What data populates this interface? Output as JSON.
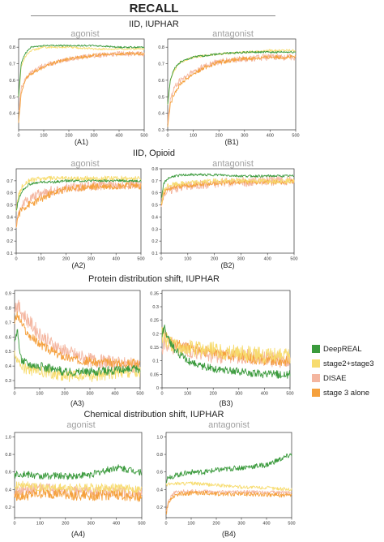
{
  "header": {
    "title": "RECALL"
  },
  "sections": [
    {
      "title": "IID, IUPHAR",
      "sub_left": "agonist",
      "sub_right": "antagonist"
    },
    {
      "title": "IID, Opioid",
      "sub_left": "agonist",
      "sub_right": "antagonist"
    },
    {
      "title": "Protein distribution shift, IUPHAR",
      "sub_left": "",
      "sub_right": ""
    },
    {
      "title": "Chemical distribution shift, IUPHAR",
      "sub_left": "agonist",
      "sub_right": "antagonist"
    }
  ],
  "legend": [
    {
      "name": "DeepREAL",
      "color": "#3a9a3c"
    },
    {
      "name": "stage2+stage3",
      "color": "#f7dc6f"
    },
    {
      "name": "DISAE",
      "color": "#f4b6a0"
    },
    {
      "name": "stage 3 alone",
      "color": "#f5a03c"
    }
  ],
  "chart_data": [
    {
      "id": "A1",
      "type": "line",
      "label": "(A1)",
      "xlim": [
        0,
        500
      ],
      "ylim": [
        0.3,
        0.85
      ],
      "xticks": [
        0,
        100,
        200,
        300,
        400,
        500
      ],
      "yticks": [
        0.4,
        0.5,
        0.6,
        0.7,
        0.8
      ],
      "x": [
        0,
        10,
        25,
        50,
        100,
        150,
        200,
        300,
        400,
        500
      ],
      "series": [
        {
          "name": "DeepREAL",
          "values": [
            0.5,
            0.7,
            0.76,
            0.8,
            0.81,
            0.81,
            0.81,
            0.81,
            0.8,
            0.8
          ],
          "noise": 0.005
        },
        {
          "name": "stage2+stage3",
          "values": [
            0.5,
            0.68,
            0.74,
            0.78,
            0.8,
            0.8,
            0.8,
            0.79,
            0.79,
            0.79
          ],
          "noise": 0.006
        },
        {
          "name": "DISAE",
          "values": [
            0.4,
            0.55,
            0.6,
            0.65,
            0.69,
            0.71,
            0.73,
            0.75,
            0.76,
            0.76
          ],
          "noise": 0.015
        },
        {
          "name": "stage 3 alone",
          "values": [
            0.35,
            0.52,
            0.6,
            0.64,
            0.68,
            0.71,
            0.73,
            0.75,
            0.76,
            0.76
          ],
          "noise": 0.01
        }
      ]
    },
    {
      "id": "B1",
      "type": "line",
      "label": "(B1)",
      "xlim": [
        0,
        500
      ],
      "ylim": [
        0.3,
        0.85
      ],
      "xticks": [
        0,
        100,
        200,
        300,
        400,
        500
      ],
      "yticks": [
        0.3,
        0.4,
        0.5,
        0.6,
        0.7,
        0.8
      ],
      "x": [
        0,
        10,
        25,
        50,
        100,
        150,
        200,
        300,
        400,
        500
      ],
      "series": [
        {
          "name": "DeepREAL",
          "values": [
            0.45,
            0.6,
            0.67,
            0.71,
            0.74,
            0.75,
            0.76,
            0.77,
            0.77,
            0.77
          ],
          "noise": 0.006
        },
        {
          "name": "stage2+stage3",
          "values": [
            0.45,
            0.6,
            0.66,
            0.71,
            0.74,
            0.75,
            0.76,
            0.77,
            0.78,
            0.78
          ],
          "noise": 0.007
        },
        {
          "name": "DISAE",
          "values": [
            0.35,
            0.48,
            0.55,
            0.6,
            0.65,
            0.69,
            0.71,
            0.73,
            0.74,
            0.74
          ],
          "noise": 0.02
        },
        {
          "name": "stage 3 alone",
          "values": [
            0.32,
            0.45,
            0.52,
            0.58,
            0.64,
            0.68,
            0.71,
            0.73,
            0.74,
            0.74
          ],
          "noise": 0.012
        }
      ]
    },
    {
      "id": "A2",
      "type": "line",
      "label": "(A2)",
      "xlim": [
        0,
        500
      ],
      "ylim": [
        0.1,
        0.8
      ],
      "xticks": [
        0,
        100,
        200,
        300,
        400,
        500
      ],
      "yticks": [
        0.1,
        0.2,
        0.3,
        0.4,
        0.5,
        0.6,
        0.7
      ],
      "x": [
        0,
        10,
        25,
        50,
        100,
        150,
        200,
        300,
        400,
        500
      ],
      "series": [
        {
          "name": "DeepREAL",
          "values": [
            0.45,
            0.55,
            0.62,
            0.67,
            0.69,
            0.69,
            0.7,
            0.7,
            0.7,
            0.7
          ],
          "noise": 0.01
        },
        {
          "name": "stage2+stage3",
          "values": [
            0.45,
            0.58,
            0.66,
            0.7,
            0.72,
            0.72,
            0.72,
            0.72,
            0.72,
            0.72
          ],
          "noise": 0.02
        },
        {
          "name": "DISAE",
          "values": [
            0.35,
            0.45,
            0.5,
            0.55,
            0.6,
            0.62,
            0.64,
            0.66,
            0.67,
            0.67
          ],
          "noise": 0.04
        },
        {
          "name": "stage 3 alone",
          "values": [
            0.33,
            0.42,
            0.47,
            0.5,
            0.55,
            0.6,
            0.63,
            0.65,
            0.66,
            0.66
          ],
          "noise": 0.03
        }
      ]
    },
    {
      "id": "B2",
      "type": "line",
      "label": "(B2)",
      "xlim": [
        0,
        500
      ],
      "ylim": [
        0.1,
        0.8
      ],
      "xticks": [
        0,
        100,
        200,
        300,
        400,
        500
      ],
      "yticks": [
        0.1,
        0.2,
        0.3,
        0.4,
        0.5,
        0.6,
        0.7,
        0.8
      ],
      "x": [
        0,
        10,
        25,
        50,
        100,
        150,
        200,
        300,
        400,
        500
      ],
      "series": [
        {
          "name": "DeepREAL",
          "values": [
            0.55,
            0.68,
            0.72,
            0.74,
            0.75,
            0.75,
            0.75,
            0.74,
            0.74,
            0.74
          ],
          "noise": 0.01
        },
        {
          "name": "stage2+stage3",
          "values": [
            0.5,
            0.62,
            0.66,
            0.67,
            0.68,
            0.69,
            0.7,
            0.7,
            0.7,
            0.7
          ],
          "noise": 0.02
        },
        {
          "name": "DISAE",
          "values": [
            0.5,
            0.6,
            0.62,
            0.64,
            0.66,
            0.67,
            0.68,
            0.69,
            0.7,
            0.7
          ],
          "noise": 0.04
        },
        {
          "name": "stage 3 alone",
          "values": [
            0.5,
            0.6,
            0.63,
            0.65,
            0.66,
            0.67,
            0.68,
            0.69,
            0.69,
            0.69
          ],
          "noise": 0.02
        }
      ]
    },
    {
      "id": "A3",
      "type": "line",
      "label": "(A3)",
      "xlim": [
        0,
        500
      ],
      "ylim": [
        0.25,
        0.92
      ],
      "xticks": [
        0,
        100,
        200,
        300,
        400,
        500
      ],
      "yticks": [
        0.3,
        0.4,
        0.5,
        0.6,
        0.7,
        0.8,
        0.9
      ],
      "x": [
        0,
        10,
        25,
        50,
        100,
        150,
        200,
        300,
        400,
        500
      ],
      "series": [
        {
          "name": "DeepREAL",
          "values": [
            0.55,
            0.65,
            0.45,
            0.42,
            0.4,
            0.38,
            0.36,
            0.36,
            0.37,
            0.38
          ],
          "noise": 0.03
        },
        {
          "name": "stage2+stage3",
          "values": [
            0.5,
            0.45,
            0.4,
            0.38,
            0.36,
            0.35,
            0.33,
            0.33,
            0.35,
            0.36
          ],
          "noise": 0.04
        },
        {
          "name": "DISAE",
          "values": [
            0.8,
            0.82,
            0.78,
            0.72,
            0.62,
            0.55,
            0.5,
            0.44,
            0.42,
            0.4
          ],
          "noise": 0.05
        },
        {
          "name": "stage 3 alone",
          "values": [
            0.7,
            0.75,
            0.7,
            0.62,
            0.55,
            0.5,
            0.46,
            0.43,
            0.42,
            0.42
          ],
          "noise": 0.03
        }
      ]
    },
    {
      "id": "B3",
      "type": "line",
      "label": "(B3)",
      "xlim": [
        0,
        500
      ],
      "ylim": [
        0,
        0.36
      ],
      "xticks": [
        0,
        100,
        200,
        300,
        400,
        500
      ],
      "yticks": [
        0,
        0.05,
        0.1,
        0.15,
        0.2,
        0.25,
        0.3,
        0.35
      ],
      "x": [
        0,
        10,
        25,
        50,
        100,
        150,
        200,
        300,
        400,
        500
      ],
      "series": [
        {
          "name": "DeepREAL",
          "values": [
            0.2,
            0.22,
            0.18,
            0.14,
            0.1,
            0.08,
            0.07,
            0.06,
            0.05,
            0.05
          ],
          "noise": 0.015
        },
        {
          "name": "stage2+stage3",
          "values": [
            0.2,
            0.18,
            0.17,
            0.16,
            0.15,
            0.14,
            0.14,
            0.13,
            0.12,
            0.12
          ],
          "noise": 0.03
        },
        {
          "name": "DISAE",
          "values": [
            0.15,
            0.17,
            0.16,
            0.15,
            0.14,
            0.13,
            0.12,
            0.12,
            0.11,
            0.1
          ],
          "noise": 0.03
        },
        {
          "name": "stage 3 alone",
          "values": [
            0.22,
            0.2,
            0.18,
            0.16,
            0.15,
            0.14,
            0.13,
            0.12,
            0.1,
            0.1
          ],
          "noise": 0.02
        }
      ]
    },
    {
      "id": "A4",
      "type": "line",
      "label": "(A4)",
      "xlim": [
        0,
        500
      ],
      "ylim": [
        0.08,
        1.05
      ],
      "xticks": [
        0,
        100,
        200,
        300,
        400,
        500
      ],
      "yticks": [
        0.2,
        0.4,
        0.6,
        0.8,
        1.0
      ],
      "x": [
        0,
        10,
        25,
        50,
        100,
        150,
        200,
        300,
        400,
        500
      ],
      "series": [
        {
          "name": "DeepREAL",
          "values": [
            0.55,
            0.58,
            0.58,
            0.57,
            0.55,
            0.56,
            0.55,
            0.57,
            0.65,
            0.6
          ],
          "noise": 0.04
        },
        {
          "name": "stage2+stage3",
          "values": [
            0.4,
            0.45,
            0.45,
            0.44,
            0.43,
            0.42,
            0.42,
            0.42,
            0.42,
            0.4
          ],
          "noise": 0.05
        },
        {
          "name": "DISAE",
          "values": [
            0.35,
            0.4,
            0.4,
            0.4,
            0.42,
            0.4,
            0.38,
            0.38,
            0.38,
            0.36
          ],
          "noise": 0.06
        },
        {
          "name": "stage 3 alone",
          "values": [
            0.35,
            0.33,
            0.32,
            0.33,
            0.35,
            0.35,
            0.34,
            0.33,
            0.34,
            0.32
          ],
          "noise": 0.06
        }
      ]
    },
    {
      "id": "B4",
      "type": "line",
      "label": "(B4)",
      "xlim": [
        0,
        500
      ],
      "ylim": [
        0.08,
        1.05
      ],
      "xticks": [
        0,
        100,
        200,
        300,
        400,
        500
      ],
      "yticks": [
        0.2,
        0.4,
        0.6,
        0.8,
        1.0
      ],
      "x": [
        0,
        10,
        25,
        50,
        100,
        150,
        200,
        300,
        400,
        500
      ],
      "series": [
        {
          "name": "DeepREAL",
          "values": [
            0.5,
            0.55,
            0.55,
            0.57,
            0.6,
            0.6,
            0.62,
            0.65,
            0.68,
            0.8
          ],
          "noise": 0.03
        },
        {
          "name": "stage2+stage3",
          "values": [
            0.45,
            0.46,
            0.47,
            0.47,
            0.47,
            0.46,
            0.45,
            0.43,
            0.42,
            0.4
          ],
          "noise": 0.02
        },
        {
          "name": "DISAE",
          "values": [
            0.15,
            0.28,
            0.35,
            0.38,
            0.38,
            0.38,
            0.37,
            0.37,
            0.37,
            0.37
          ],
          "noise": 0.02
        },
        {
          "name": "stage 3 alone",
          "values": [
            0.12,
            0.25,
            0.32,
            0.35,
            0.36,
            0.36,
            0.35,
            0.35,
            0.34,
            0.33
          ],
          "noise": 0.025
        }
      ]
    }
  ]
}
